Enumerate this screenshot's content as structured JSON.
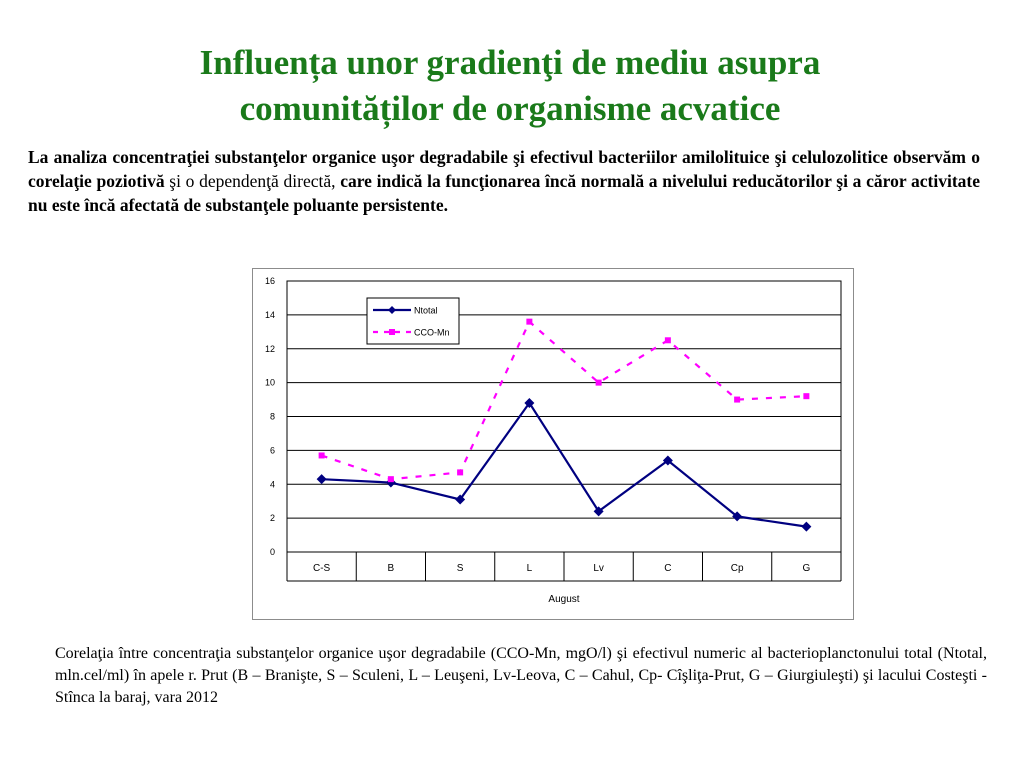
{
  "title_line1": "Influența unor gradienţi de mediu asupra",
  "title_line2": "comunităților de organisme acvatice",
  "intro": {
    "part1": "La analiza concentraţiei substanţelor organice uşor degradabile şi efectivul bacteriilor amilolituice şi celulozolitice observăm o corelaţie poziotivă",
    "part2": " şi o dependenţă directă, ",
    "part3": "care indică la funcţionarea încă normală a nivelului reducătorilor şi a căror activitate nu este  încă afectată de substanţele poluante persistente."
  },
  "caption": "Corelaţia între concentraţia  substanţelor organice uşor degradabile (CCO-Mn, mgO/l) şi efectivul numeric al bacterioplanctonului total  (Ntotal, mln.cel/ml) în apele r. Prut (B – Branişte, S – Sculeni, L – Leuşeni,  Lv-Leova, C – Cahul, Cp- Cîşliţa-Prut, G – Giurgiuleşti) şi lacului Costeşti -Stînca la baraj, vara 2012",
  "chart_data": {
    "type": "line",
    "categories": [
      "C-S",
      "B",
      "S",
      "L",
      "Lv",
      "C",
      "Cp",
      "G"
    ],
    "xlabel": "August",
    "ylabel": "",
    "ylim": [
      0,
      16
    ],
    "yticks": [
      0,
      2,
      4,
      6,
      8,
      10,
      12,
      14,
      16
    ],
    "grid": true,
    "legend_position": "top-left",
    "series": [
      {
        "name": "Ntotal",
        "values": [
          4.3,
          4.1,
          3.1,
          8.8,
          2.4,
          5.4,
          2.1,
          1.5
        ],
        "color": "#000080",
        "style": "solid",
        "marker": "diamond"
      },
      {
        "name": "CCO-Mn",
        "values": [
          5.7,
          4.3,
          4.7,
          13.6,
          10.0,
          12.5,
          9.0,
          9.2
        ],
        "color": "#ff00ff",
        "style": "dashed",
        "marker": "square"
      }
    ]
  }
}
